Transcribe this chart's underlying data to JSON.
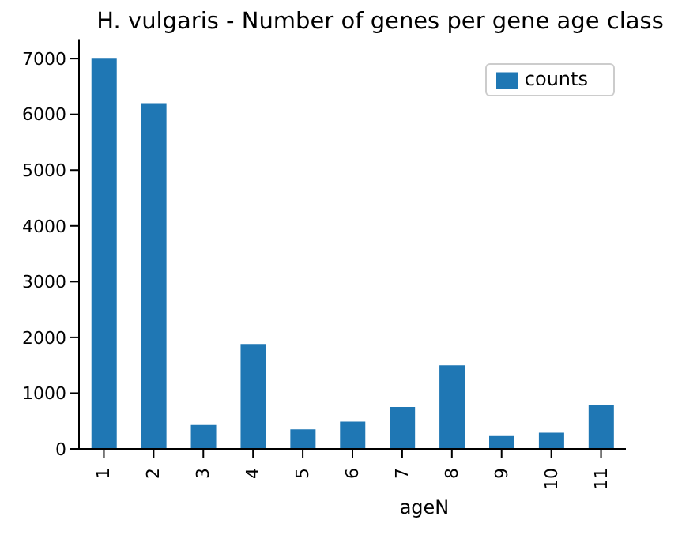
{
  "chart_data": {
    "type": "bar",
    "title": "H. vulgaris - Number of genes per gene age class",
    "xlabel": "ageN",
    "categories": [
      "1",
      "2",
      "3",
      "4",
      "5",
      "6",
      "7",
      "8",
      "9",
      "10",
      "11"
    ],
    "series": [
      {
        "name": "counts",
        "color": "#1f77b4",
        "values": [
          7000,
          6200,
          430,
          1880,
          350,
          490,
          750,
          1500,
          230,
          290,
          780
        ]
      }
    ],
    "ylim": [
      0,
      7350
    ],
    "yticks": [
      0,
      1000,
      2000,
      3000,
      4000,
      5000,
      6000,
      7000
    ],
    "grid": false,
    "legend": "top right"
  }
}
